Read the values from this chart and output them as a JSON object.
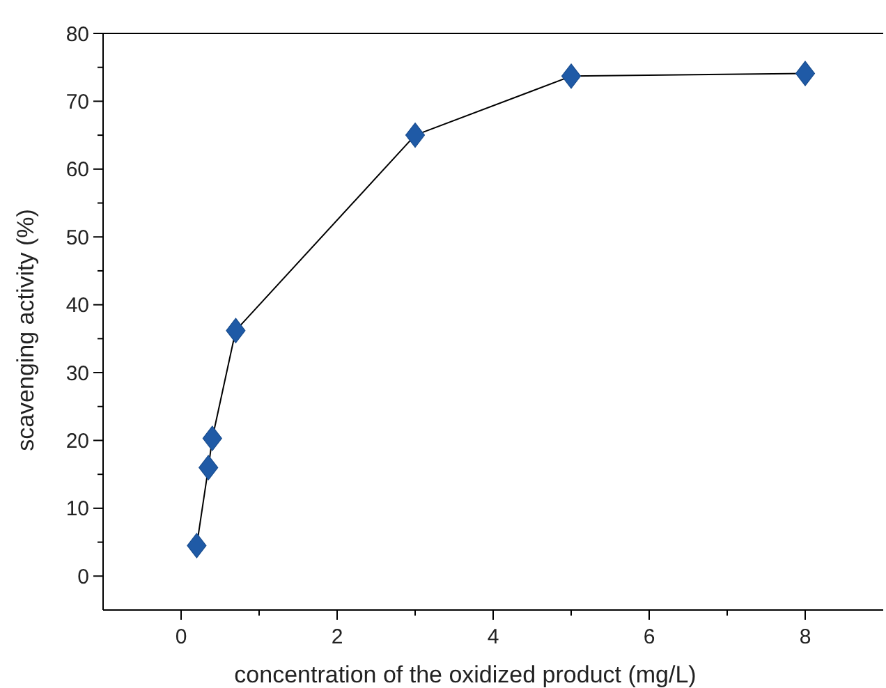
{
  "chart_data": {
    "type": "line",
    "xlabel": "concentration of the oxidized product (mg/L)",
    "ylabel": "scavenging activity (%)",
    "x": [
      0.2,
      0.35,
      0.4,
      0.7,
      3,
      5,
      8
    ],
    "series": [
      {
        "color": "#1f5aa6",
        "values": [
          4.5,
          16,
          20.3,
          36.2,
          65,
          73.7,
          74.1
        ]
      }
    ],
    "xlim": [
      -1,
      9
    ],
    "ylim": [
      -5,
      80
    ],
    "xticks": [
      0,
      {
        "value": 1,
        "label": null
      },
      2,
      {
        "value": 3,
        "label": null
      },
      4,
      {
        "value": 5,
        "label": null
      },
      6,
      {
        "value": 7,
        "label": null
      },
      8
    ],
    "yticks": [
      0,
      {
        "value": 5,
        "label": null
      },
      10,
      {
        "value": 15,
        "label": null
      },
      20,
      {
        "value": 25,
        "label": null
      },
      30,
      {
        "value": 35,
        "label": null
      },
      40,
      {
        "value": 45,
        "label": null
      },
      50,
      {
        "value": 55,
        "label": null
      },
      60,
      {
        "value": 65,
        "label": null
      },
      70,
      {
        "value": 75,
        "label": null
      },
      80
    ],
    "marker": "diamond",
    "line_style": "solid",
    "grid": false
  }
}
